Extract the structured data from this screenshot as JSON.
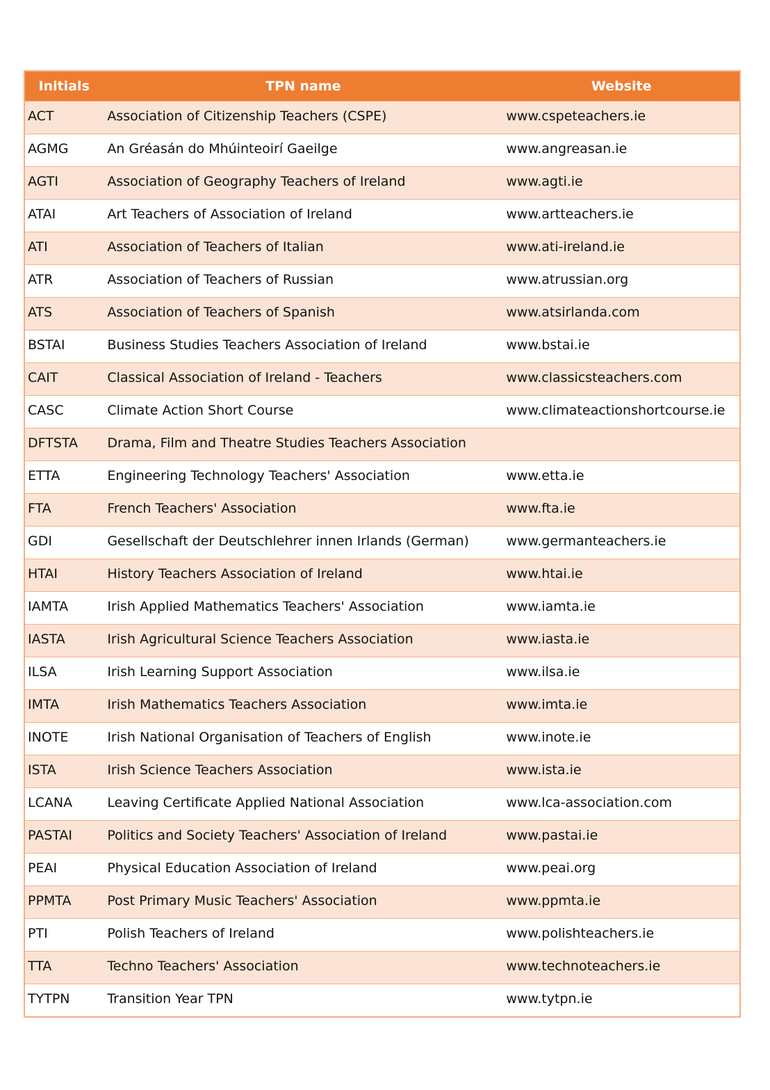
{
  "table": {
    "headers": [
      "Initials",
      "TPN name",
      "Website"
    ],
    "colors": {
      "header": "#ED7D31",
      "band": "#FBE4D5",
      "border": "#F4B083"
    },
    "rows": [
      [
        "ACT",
        "Association of Citizenship Teachers (CSPE)",
        "www.cspeteachers.ie"
      ],
      [
        "AGMG",
        "An Gréasán do Mhúinteoirí Gaeilge",
        "www.angreasan.ie"
      ],
      [
        "AGTI",
        "Association of Geography Teachers of Ireland",
        "www.agti.ie"
      ],
      [
        "ATAI",
        "Art Teachers of Association of Ireland",
        "www.artteachers.ie"
      ],
      [
        "ATI",
        "Association of Teachers of Italian",
        "www.ati-ireland.ie"
      ],
      [
        "ATR",
        "Association of Teachers of Russian",
        "www.atrussian.org"
      ],
      [
        "ATS",
        "Association of Teachers of Spanish",
        "www.atsirlanda.com"
      ],
      [
        "BSTAI",
        "Business Studies Teachers Association of Ireland",
        "www.bstai.ie"
      ],
      [
        "CAIT",
        "Classical Association of Ireland - Teachers",
        "www.classicsteachers.com"
      ],
      [
        "CASC",
        "Climate Action Short Course",
        "www.climateactionshortcourse.ie"
      ],
      [
        "DFTSTA",
        "Drama, Film and Theatre Studies Teachers Association",
        ""
      ],
      [
        "ETTA",
        "Engineering Technology Teachers' Association",
        "www.etta.ie"
      ],
      [
        "FTA",
        "French Teachers' Association",
        "www.fta.ie"
      ],
      [
        "GDI",
        "Gesellschaft der Deutschlehrer innen Irlands  (German)",
        "www.germanteachers.ie"
      ],
      [
        "HTAI",
        "History Teachers Association of Ireland",
        "www.htai.ie"
      ],
      [
        "IAMTA",
        "Irish Applied Mathematics Teachers' Association",
        "www.iamta.ie"
      ],
      [
        "IASTA",
        "Irish Agricultural Science Teachers Association",
        "www.iasta.ie"
      ],
      [
        "ILSA",
        "Irish Learning Support Association",
        "www.ilsa.ie"
      ],
      [
        "IMTA",
        "Irish Mathematics Teachers Association",
        "www.imta.ie"
      ],
      [
        "INOTE",
        "Irish National Organisation of Teachers of English",
        "www.inote.ie"
      ],
      [
        "ISTA",
        "Irish Science Teachers Association",
        "www.ista.ie"
      ],
      [
        "LCANA",
        "Leaving Certificate Applied National Association",
        "www.lca-association.com"
      ],
      [
        "PASTAI",
        "Politics and Society Teachers' Association of Ireland",
        "www.pastai.ie"
      ],
      [
        "PEAI",
        "Physical Education Association of Ireland",
        "www.peai.org"
      ],
      [
        "PPMTA",
        "Post Primary Music Teachers' Association",
        "www.ppmta.ie"
      ],
      [
        "PTI",
        "Polish Teachers of Ireland",
        "www.polishteachers.ie"
      ],
      [
        "TTA",
        "Techno Teachers' Association",
        "www.technoteachers.ie"
      ],
      [
        "TYTPN",
        "Transition Year TPN",
        "www.tytpn.ie"
      ]
    ]
  }
}
